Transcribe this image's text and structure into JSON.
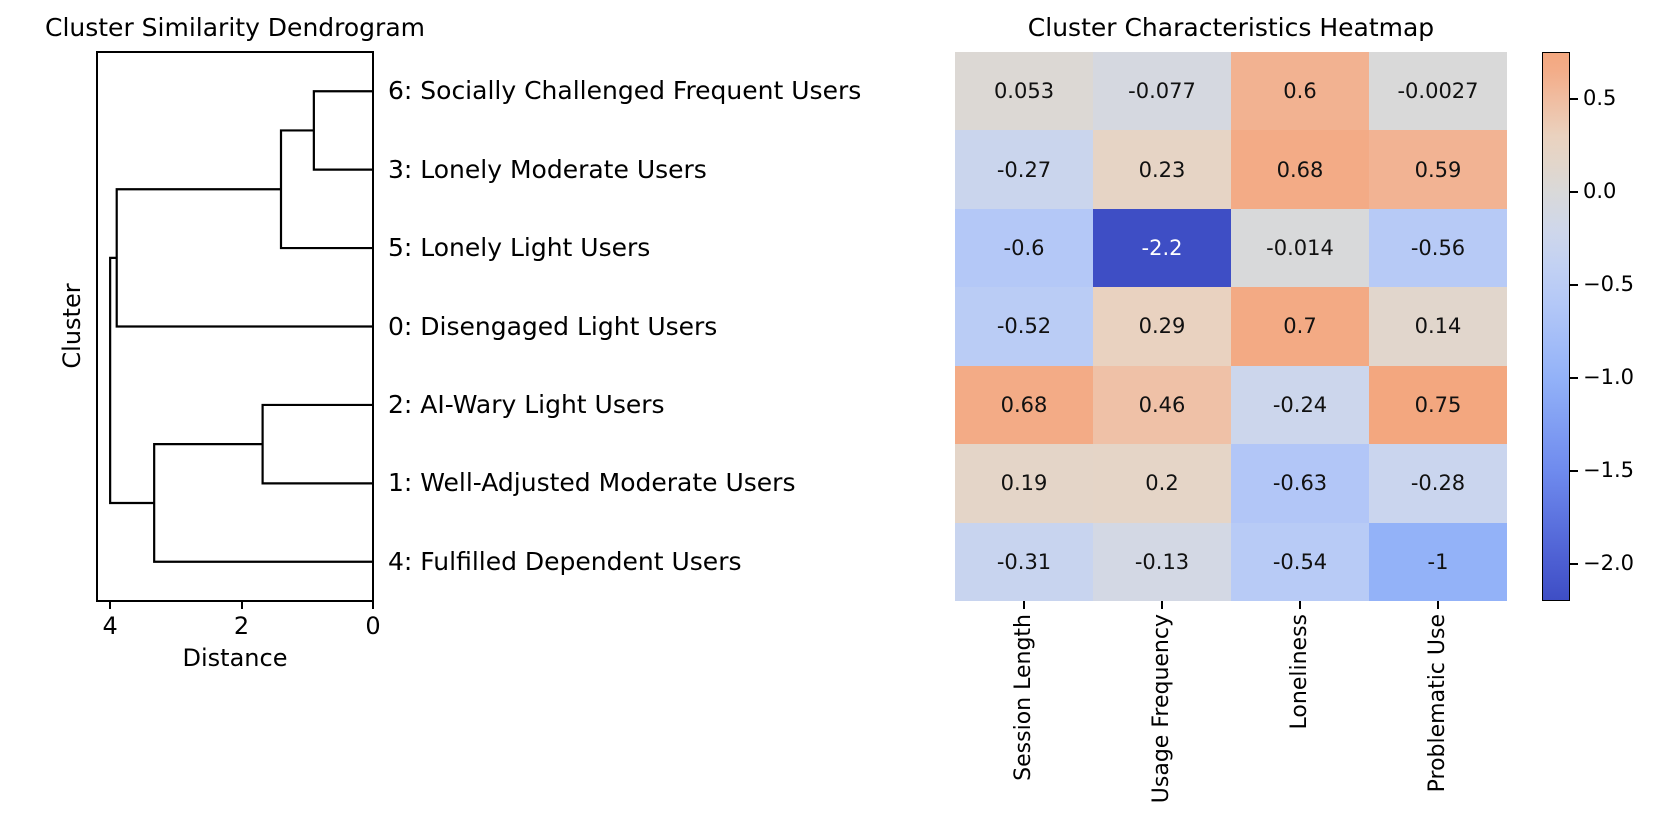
{
  "figure": {
    "background": "#ffffff",
    "line_color": "#000000"
  },
  "chart_data": [
    {
      "type": "dendrogram",
      "title": "Cluster Similarity Dendrogram",
      "xlabel": "Distance",
      "ylabel": "Cluster",
      "xlim": [
        4.2,
        0
      ],
      "xticks": [
        4,
        2,
        0
      ],
      "orientation": "left",
      "leaves": [
        "6: Socially Challenged Frequent Users",
        "3: Lonely Moderate Users",
        "5: Lonely Light Users",
        "0: Disengaged Light Users",
        "2: AI-Wary Light Users",
        "1: Well-Adjusted Moderate Users",
        "4: Fulfilled Dependent Users"
      ],
      "links": [
        {
          "dcoord": [
            0,
            0.9,
            0.9,
            0
          ],
          "ycoord": [
            0.5,
            0.5,
            1.5,
            1.5
          ]
        },
        {
          "dcoord": [
            0.9,
            1.4,
            1.4,
            0
          ],
          "ycoord": [
            1.0,
            1.0,
            2.5,
            2.5
          ]
        },
        {
          "dcoord": [
            1.4,
            3.9,
            3.9,
            0
          ],
          "ycoord": [
            1.75,
            1.75,
            3.5,
            3.5
          ]
        },
        {
          "dcoord": [
            0,
            1.68,
            1.68,
            0
          ],
          "ycoord": [
            4.5,
            4.5,
            5.5,
            5.5
          ]
        },
        {
          "dcoord": [
            1.68,
            3.33,
            3.33,
            0
          ],
          "ycoord": [
            5.0,
            5.0,
            6.5,
            6.5
          ]
        },
        {
          "dcoord": [
            3.9,
            4.0,
            4.0,
            3.33
          ],
          "ycoord": [
            2.625,
            2.625,
            5.75,
            5.75
          ]
        }
      ]
    },
    {
      "type": "heatmap",
      "title": "Cluster Characteristics Heatmap",
      "columns": [
        "Session Length",
        "Usage Frequency",
        "Loneliness",
        "Problematic Use"
      ],
      "rows": [
        "6: Socially Challenged Frequent Users",
        "3: Lonely Moderate Users",
        "5: Lonely Light Users",
        "0: Disengaged Light Users",
        "2: AI-Wary Light Users",
        "1: Well-Adjusted Moderate Users",
        "4: Fulfilled Dependent Users"
      ],
      "values": [
        [
          0.053,
          -0.077,
          0.6,
          -0.0027
        ],
        [
          -0.27,
          0.23,
          0.68,
          0.59
        ],
        [
          -0.6,
          -2.2,
          -0.014,
          -0.56
        ],
        [
          -0.52,
          0.29,
          0.7,
          0.14
        ],
        [
          0.68,
          0.46,
          -0.24,
          0.75
        ],
        [
          0.19,
          0.2,
          -0.63,
          -0.28
        ],
        [
          -0.31,
          -0.13,
          -0.54,
          -1
        ]
      ],
      "annotations": [
        [
          "0.053",
          "-0.077",
          "0.6",
          "-0.0027"
        ],
        [
          "-0.27",
          "0.23",
          "0.68",
          "0.59"
        ],
        [
          "-0.6",
          "-2.2",
          "-0.014",
          "-0.56"
        ],
        [
          "-0.52",
          "0.29",
          "0.7",
          "0.14"
        ],
        [
          "0.68",
          "0.46",
          "-0.24",
          "0.75"
        ],
        [
          "0.19",
          "0.2",
          "-0.63",
          "-0.28"
        ],
        [
          "-0.31",
          "-0.13",
          "-0.54",
          "-1"
        ]
      ],
      "color_scale": {
        "name": "coolwarm-centered",
        "vmin": -2.2,
        "vmax": 0.75,
        "lut": [
          [
            -2.2,
            "#3e4ec5"
          ],
          [
            -2.0,
            "#4c5ed2"
          ],
          [
            -1.5,
            "#6f8bee"
          ],
          [
            -1.0,
            "#93b2f8"
          ],
          [
            -0.6,
            "#b4c8f7"
          ],
          [
            -0.4,
            "#c2d1f3"
          ],
          [
            -0.2,
            "#cfd7ea"
          ],
          [
            0.0,
            "#d9d9d9"
          ],
          [
            0.15,
            "#e2d6cb"
          ],
          [
            0.3,
            "#ead2bf"
          ],
          [
            0.5,
            "#f0bda1"
          ],
          [
            0.65,
            "#f3ad89"
          ],
          [
            0.75,
            "#f3a77f"
          ]
        ],
        "dark_text": "#111111",
        "light_text": "#ffffff"
      },
      "colorbar": {
        "tick_values": [
          0.5,
          0.0,
          -0.5,
          -1.0,
          -1.5,
          -2.0
        ],
        "tick_labels": [
          "0.5",
          "0.0",
          "−0.5",
          "−1.0",
          "−1.5",
          "−2.0"
        ]
      }
    }
  ]
}
